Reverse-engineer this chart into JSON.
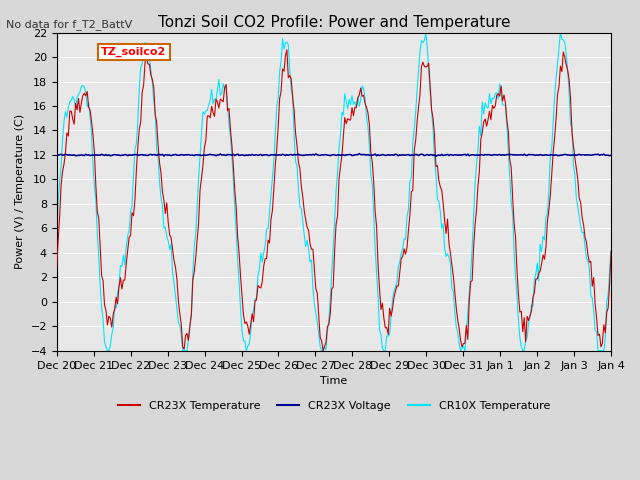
{
  "title": "Tonzi Soil CO2 Profile: Power and Temperature",
  "xlabel": "Time",
  "ylabel": "Power (V) / Temperature (C)",
  "no_data_text": "No data for f_T2_BattV",
  "tz_label": "TZ_soilco2",
  "ylim": [
    -4,
    22
  ],
  "yticks": [
    -4,
    -2,
    0,
    2,
    4,
    6,
    8,
    10,
    12,
    14,
    16,
    18,
    20,
    22
  ],
  "xtick_labels": [
    "Dec 20",
    "Dec 21",
    "Dec 22",
    "Dec 23",
    "Dec 24",
    "Dec 25",
    "Dec 26",
    "Dec 27",
    "Dec 28",
    "Dec 29",
    "Dec 30",
    "Dec 31",
    "Jan 1",
    "Jan 2",
    "Jan 3",
    "Jan 4"
  ],
  "cr23x_temp_color": "#cc0000",
  "cr23x_volt_color": "#00008b",
  "cr10x_temp_color": "#00e5ff",
  "background_color": "#d8d8d8",
  "plot_bg_color": "#e8e8e8",
  "grid_color": "#ffffff",
  "title_fontsize": 11,
  "label_fontsize": 8,
  "tick_fontsize": 8
}
